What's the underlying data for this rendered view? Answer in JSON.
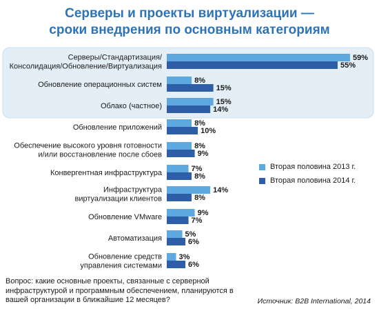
{
  "title": {
    "line1": "Серверы и проекты виртуализации —",
    "line2": "сроки внедрения по основным категориям"
  },
  "question": "Вопрос: какие основные проекты, связанные с серверной инфраструктурой и программным обеспечением, планируются в вашей организации в ближайшие 12 месяцев?",
  "source": "Источник: B2B International, 2014",
  "colors": {
    "series_2013": "#5ea8e0",
    "series_2014": "#2f5ea8",
    "highlight_bg": "#e3eef6",
    "highlight_border": "#c9dcea",
    "title": "#2d73b8"
  },
  "chart_data": {
    "type": "bar",
    "orientation": "horizontal",
    "categories": [
      [
        "Серверы/Стандартизация/",
        "Консолидация/Обновление/Виртуализация"
      ],
      [
        "Обновление операционных систем"
      ],
      [
        "Облако (частное)"
      ],
      [
        "Обновление приложений"
      ],
      [
        "Обеспечение высокого уровня готовности",
        "и/или восстановление после сбоев"
      ],
      [
        "Конвергентная инфраструктура"
      ],
      [
        "Инфраструктура",
        "виртуализации клиентов"
      ],
      [
        "Обновление VMware"
      ],
      [
        "Автоматизация"
      ],
      [
        "Обновление средств",
        "управления системами"
      ]
    ],
    "series": [
      {
        "name": "Вторая половина 2013 г.",
        "values": [
          59,
          8,
          15,
          8,
          8,
          7,
          14,
          9,
          5,
          3
        ],
        "labels": [
          "59%",
          "8%",
          "15%",
          "8%",
          "8%",
          "7%",
          "14%",
          "9%",
          "5%",
          "3%"
        ]
      },
      {
        "name": "Вторая половина 2014 г.",
        "values": [
          55,
          15,
          14,
          10,
          9,
          8,
          8,
          7,
          6,
          6
        ],
        "labels": [
          "55%",
          "15%",
          "14%",
          "10%",
          "9%",
          "8%",
          "8%",
          "7%",
          "6%",
          "6%"
        ]
      }
    ],
    "highlighted_categories": 3,
    "unit": "%",
    "xlim": [
      0,
      59
    ],
    "legend_position": "right"
  }
}
